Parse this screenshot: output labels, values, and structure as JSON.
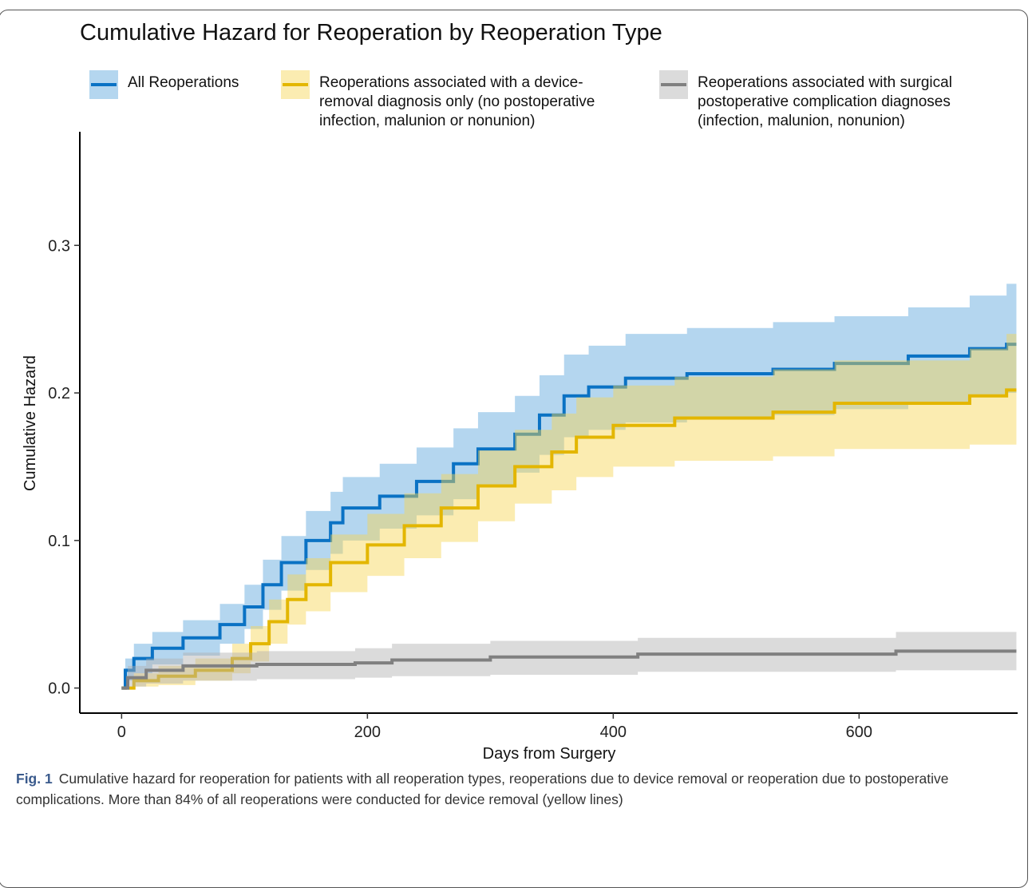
{
  "chart_data": {
    "type": "step",
    "title": "Cumulative Hazard for Reoperation by Reoperation Type",
    "x_label": "Days from Surgery",
    "y_label": "Cumulative Hazard",
    "xlim": [
      -34,
      729
    ],
    "ylim": [
      -0.017,
      0.377
    ],
    "xticks": [
      0,
      200,
      400,
      600
    ],
    "yticks": [
      {
        "value": 0,
        "label": "0.0"
      },
      0.1,
      0.2,
      0.3
    ],
    "grid": false,
    "legend": "top",
    "series": [
      {
        "name": "All Reoperations",
        "color": "#0a72c4",
        "band_color": "#6aaee0",
        "band_opacity": 0.5,
        "x": [
          0,
          3,
          10,
          25,
          50,
          80,
          100,
          115,
          130,
          150,
          170,
          180,
          210,
          240,
          270,
          290,
          320,
          340,
          360,
          380,
          410,
          460,
          530,
          580,
          640,
          690,
          720,
          728
        ],
        "values": [
          0,
          0.012,
          0.02,
          0.027,
          0.034,
          0.043,
          0.055,
          0.07,
          0.085,
          0.1,
          0.112,
          0.122,
          0.13,
          0.14,
          0.152,
          0.162,
          0.172,
          0.185,
          0.198,
          0.204,
          0.21,
          0.213,
          0.216,
          0.22,
          0.225,
          0.23,
          0.233,
          0.233
        ],
        "lower": [
          0,
          0.005,
          0.01,
          0.016,
          0.022,
          0.03,
          0.04,
          0.053,
          0.066,
          0.08,
          0.091,
          0.1,
          0.108,
          0.117,
          0.128,
          0.137,
          0.146,
          0.158,
          0.17,
          0.175,
          0.18,
          0.183,
          0.185,
          0.189,
          0.193,
          0.198,
          0.2,
          0.2
        ],
        "upper": [
          0,
          0.02,
          0.03,
          0.038,
          0.046,
          0.057,
          0.07,
          0.087,
          0.103,
          0.12,
          0.133,
          0.143,
          0.152,
          0.163,
          0.176,
          0.187,
          0.198,
          0.212,
          0.226,
          0.232,
          0.24,
          0.244,
          0.248,
          0.252,
          0.258,
          0.266,
          0.274,
          0.274
        ]
      },
      {
        "name": "Reoperations associated with a device-removal diagnosis only (no postoperative infection, malunion or nonunion)",
        "color": "#e3b600",
        "band_color": "#f6d552",
        "band_opacity": 0.45,
        "x": [
          0,
          10,
          30,
          60,
          90,
          105,
          120,
          135,
          150,
          170,
          200,
          230,
          260,
          290,
          320,
          350,
          370,
          400,
          450,
          530,
          580,
          690,
          720,
          728
        ],
        "values": [
          0,
          0.005,
          0.008,
          0.012,
          0.02,
          0.03,
          0.045,
          0.06,
          0.07,
          0.085,
          0.097,
          0.11,
          0.122,
          0.137,
          0.15,
          0.16,
          0.17,
          0.178,
          0.183,
          0.187,
          0.193,
          0.198,
          0.202,
          0.202
        ],
        "lower": [
          0,
          0.001,
          0.002,
          0.005,
          0.01,
          0.018,
          0.03,
          0.043,
          0.052,
          0.065,
          0.076,
          0.088,
          0.099,
          0.113,
          0.125,
          0.134,
          0.143,
          0.15,
          0.154,
          0.157,
          0.162,
          0.165,
          0.165,
          0.165
        ],
        "upper": [
          0,
          0.01,
          0.015,
          0.02,
          0.03,
          0.042,
          0.06,
          0.077,
          0.088,
          0.104,
          0.118,
          0.132,
          0.145,
          0.161,
          0.175,
          0.186,
          0.197,
          0.205,
          0.211,
          0.216,
          0.222,
          0.23,
          0.24,
          0.24
        ]
      },
      {
        "name": "Reoperations associated with surgical postoperative complication diagnoses (infection, malunion, nonunion)",
        "color": "#808080",
        "band_color": "#b0b0b0",
        "band_opacity": 0.45,
        "x": [
          0,
          5,
          20,
          50,
          110,
          190,
          220,
          300,
          420,
          630,
          728
        ],
        "values": [
          0,
          0.007,
          0.012,
          0.015,
          0.016,
          0.017,
          0.019,
          0.021,
          0.023,
          0.025,
          0.025
        ],
        "lower": [
          0,
          0.001,
          0.003,
          0.005,
          0.006,
          0.007,
          0.008,
          0.009,
          0.011,
          0.012,
          0.012
        ],
        "upper": [
          0,
          0.015,
          0.02,
          0.024,
          0.025,
          0.027,
          0.03,
          0.032,
          0.034,
          0.038,
          0.038
        ]
      }
    ],
    "caption_label": "Fig. 1",
    "caption": "Cumulative hazard for reoperation for patients with all reoperation types, reoperations due to device removal or reoperation due to postoperative complications. More than 84% of all reoperations were conducted for device removal (yellow lines)"
  }
}
